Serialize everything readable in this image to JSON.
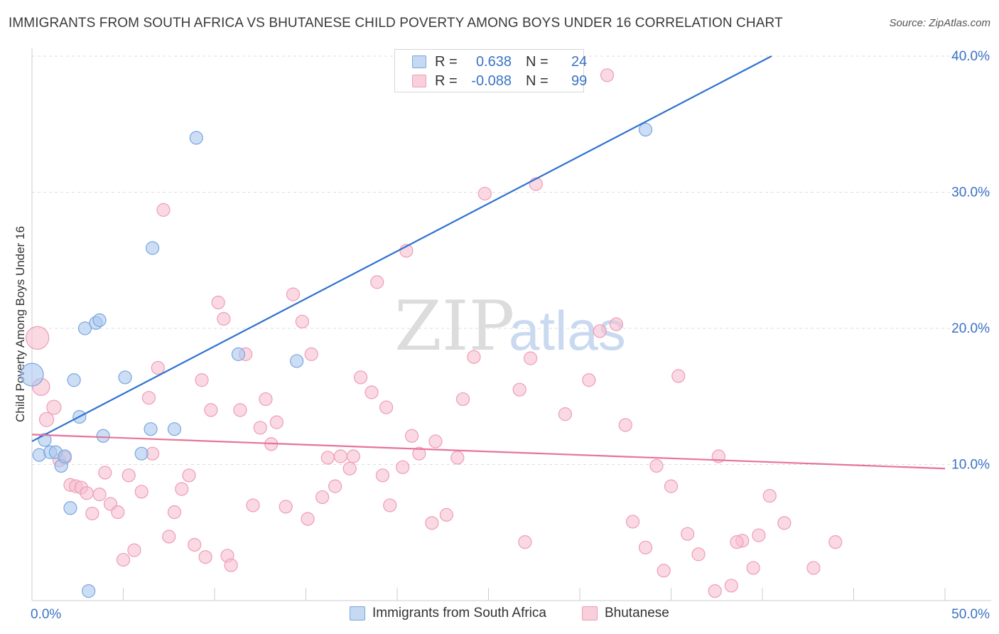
{
  "header": {
    "title": "IMMIGRANTS FROM SOUTH AFRICA VS BHUTANESE CHILD POVERTY AMONG BOYS UNDER 16 CORRELATION CHART",
    "source": "Source: ZipAtlas.com"
  },
  "legend": {
    "rows": [
      {
        "r_label": "R =",
        "r_value": "0.638",
        "n_label": "N =",
        "n_value": "24"
      },
      {
        "r_label": "R =",
        "r_value": "-0.088",
        "n_label": "N =",
        "n_value": "99"
      }
    ]
  },
  "bottom_legend": {
    "items": [
      "Immigrants from South Africa",
      "Bhutanese"
    ]
  },
  "watermark": {
    "zip": "ZIP",
    "atlas": "atlas"
  },
  "colors": {
    "blue_fill": "#aac8ee",
    "blue_stroke": "#7aa6dc",
    "blue_line": "#2f72d0",
    "pink_fill": "#f7bfd0",
    "pink_stroke": "#ee9cb8",
    "pink_line": "#e8729a",
    "tick_text": "#3b73c4",
    "grid": "#dddddd"
  },
  "chart_data": {
    "type": "scatter",
    "title": "IMMIGRANTS FROM SOUTH AFRICA VS BHUTANESE CHILD POVERTY AMONG BOYS UNDER 16 CORRELATION CHART",
    "xlabel": "",
    "ylabel": "Child Poverty Among Boys Under 16",
    "xlim": [
      0,
      50
    ],
    "ylim": [
      0,
      40
    ],
    "x_tick_labels": [
      "0.0%",
      "50.0%"
    ],
    "y_ticks": [
      10,
      20,
      30,
      40
    ],
    "y_tick_labels": [
      "10.0%",
      "20.0%",
      "30.0%",
      "40.0%"
    ],
    "grid": "horizontal dashed",
    "series": [
      {
        "name": "Immigrants from South Africa",
        "r": 0.638,
        "n": 24,
        "trend": {
          "x0": 0,
          "y0": 11.7,
          "x1": 40.5,
          "y1": 40
        },
        "points": [
          [
            0.0,
            16.6,
            16
          ],
          [
            0.4,
            10.7,
            9
          ],
          [
            0.7,
            11.8,
            9
          ],
          [
            1.0,
            10.9,
            9
          ],
          [
            1.3,
            10.9,
            9
          ],
          [
            1.6,
            9.9,
            9
          ],
          [
            1.8,
            10.6,
            9
          ],
          [
            2.1,
            6.8,
            9
          ],
          [
            2.3,
            16.2,
            9
          ],
          [
            2.6,
            13.5,
            9
          ],
          [
            2.9,
            20.0,
            9
          ],
          [
            3.5,
            20.4,
            9
          ],
          [
            3.7,
            20.6,
            9
          ],
          [
            3.9,
            12.1,
            9
          ],
          [
            5.1,
            16.4,
            9
          ],
          [
            6.0,
            10.8,
            9
          ],
          [
            6.5,
            12.6,
            9
          ],
          [
            6.6,
            25.9,
            9
          ],
          [
            7.8,
            12.6,
            9
          ],
          [
            9.0,
            34.0,
            9
          ],
          [
            11.3,
            18.1,
            9
          ],
          [
            14.5,
            17.6,
            9
          ],
          [
            3.1,
            0.7,
            9
          ],
          [
            33.6,
            34.6,
            9
          ]
        ]
      },
      {
        "name": "Bhutanese",
        "r": -0.088,
        "n": 99,
        "trend": {
          "x0": 0,
          "y0": 12.2,
          "x1": 50,
          "y1": 9.7
        },
        "points": [
          [
            0.3,
            19.3,
            16
          ],
          [
            0.5,
            15.7,
            12
          ],
          [
            0.8,
            13.3,
            10
          ],
          [
            1.2,
            14.2,
            10
          ],
          [
            1.5,
            10.3,
            9
          ],
          [
            1.8,
            10.5,
            9
          ],
          [
            2.1,
            8.5,
            9
          ],
          [
            2.4,
            8.4,
            9
          ],
          [
            2.7,
            8.3,
            9
          ],
          [
            3.0,
            7.9,
            9
          ],
          [
            3.3,
            6.4,
            9
          ],
          [
            3.7,
            7.8,
            9
          ],
          [
            4.0,
            9.4,
            9
          ],
          [
            4.3,
            7.1,
            9
          ],
          [
            4.7,
            6.5,
            9
          ],
          [
            5.0,
            3.0,
            9
          ],
          [
            5.3,
            9.2,
            9
          ],
          [
            5.6,
            3.7,
            9
          ],
          [
            6.0,
            8.0,
            9
          ],
          [
            6.4,
            14.9,
            9
          ],
          [
            6.6,
            10.8,
            9
          ],
          [
            6.9,
            17.1,
            9
          ],
          [
            7.2,
            28.7,
            9
          ],
          [
            7.5,
            4.7,
            9
          ],
          [
            7.8,
            6.5,
            9
          ],
          [
            8.2,
            8.2,
            9
          ],
          [
            8.6,
            9.2,
            9
          ],
          [
            8.9,
            4.1,
            9
          ],
          [
            9.3,
            16.2,
            9
          ],
          [
            9.5,
            3.2,
            9
          ],
          [
            9.8,
            14.0,
            9
          ],
          [
            10.2,
            21.9,
            9
          ],
          [
            10.5,
            20.7,
            9
          ],
          [
            10.7,
            3.3,
            9
          ],
          [
            10.9,
            2.6,
            9
          ],
          [
            11.4,
            14.0,
            9
          ],
          [
            11.7,
            18.1,
            9
          ],
          [
            12.1,
            7.0,
            9
          ],
          [
            12.5,
            12.7,
            9
          ],
          [
            12.8,
            14.8,
            9
          ],
          [
            13.1,
            11.5,
            9
          ],
          [
            13.4,
            13.1,
            9
          ],
          [
            13.9,
            6.9,
            9
          ],
          [
            14.3,
            22.5,
            9
          ],
          [
            14.8,
            20.5,
            9
          ],
          [
            15.1,
            6.0,
            9
          ],
          [
            15.3,
            18.1,
            9
          ],
          [
            15.9,
            7.6,
            9
          ],
          [
            16.2,
            10.5,
            9
          ],
          [
            16.6,
            8.4,
            9
          ],
          [
            16.9,
            10.6,
            9
          ],
          [
            17.4,
            9.7,
            9
          ],
          [
            17.6,
            10.6,
            9
          ],
          [
            18.0,
            16.4,
            9
          ],
          [
            18.6,
            15.3,
            9
          ],
          [
            18.9,
            23.4,
            9
          ],
          [
            19.2,
            9.2,
            9
          ],
          [
            19.4,
            14.2,
            9
          ],
          [
            19.6,
            7.0,
            9
          ],
          [
            20.3,
            9.8,
            9
          ],
          [
            20.5,
            25.7,
            9
          ],
          [
            20.8,
            12.1,
            9
          ],
          [
            21.2,
            10.8,
            9
          ],
          [
            21.9,
            5.7,
            9
          ],
          [
            22.1,
            11.7,
            9
          ],
          [
            22.7,
            6.3,
            9
          ],
          [
            23.3,
            10.5,
            9
          ],
          [
            23.6,
            14.8,
            9
          ],
          [
            24.2,
            17.9,
            9
          ],
          [
            24.8,
            29.9,
            9
          ],
          [
            26.7,
            15.5,
            9
          ],
          [
            27.0,
            4.3,
            9
          ],
          [
            27.3,
            17.8,
            9
          ],
          [
            27.6,
            30.6,
            9
          ],
          [
            29.2,
            13.7,
            9
          ],
          [
            30.5,
            16.2,
            9
          ],
          [
            31.1,
            19.8,
            9
          ],
          [
            31.5,
            38.6,
            9
          ],
          [
            32.0,
            20.3,
            9
          ],
          [
            32.5,
            12.9,
            9
          ],
          [
            32.9,
            5.8,
            9
          ],
          [
            33.6,
            3.9,
            9
          ],
          [
            34.2,
            9.9,
            9
          ],
          [
            34.6,
            2.2,
            9
          ],
          [
            35.0,
            8.4,
            9
          ],
          [
            35.4,
            16.5,
            9
          ],
          [
            35.9,
            4.9,
            9
          ],
          [
            36.5,
            3.4,
            9
          ],
          [
            37.4,
            0.7,
            9
          ],
          [
            37.6,
            10.6,
            9
          ],
          [
            38.3,
            1.1,
            9
          ],
          [
            38.9,
            4.4,
            9
          ],
          [
            39.5,
            2.4,
            9
          ],
          [
            39.8,
            4.8,
            9
          ],
          [
            40.4,
            7.7,
            9
          ],
          [
            41.2,
            5.7,
            9
          ],
          [
            42.8,
            2.4,
            9
          ],
          [
            44.0,
            4.3,
            9
          ],
          [
            38.6,
            4.3,
            9
          ]
        ]
      }
    ]
  }
}
